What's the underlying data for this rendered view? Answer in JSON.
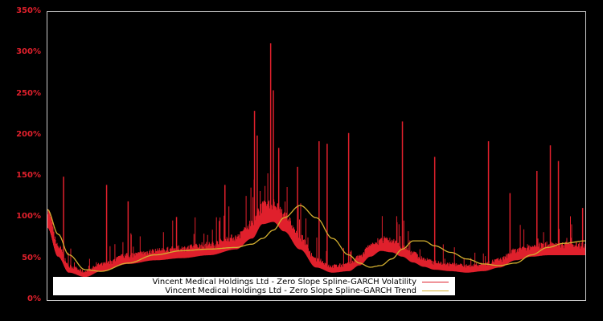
{
  "chart_data": {
    "type": "line",
    "title": "",
    "xlabel": "",
    "ylabel": "",
    "ylim": [
      0,
      350
    ],
    "y_ticks": [
      "0%",
      "50%",
      "100%",
      "150%",
      "200%",
      "250%",
      "300%",
      "350%"
    ],
    "x_ticks": [],
    "grid": false,
    "legend_position": "bottom-left inside",
    "background": "#000000",
    "axis_color": "#cccccc",
    "tick_label_color": "#e0202c",
    "x_normalized": [
      0,
      0.02,
      0.04,
      0.07,
      0.1,
      0.15,
      0.2,
      0.25,
      0.3,
      0.35,
      0.38,
      0.4,
      0.42,
      0.44,
      0.47,
      0.5,
      0.53,
      0.56,
      0.58,
      0.6,
      0.62,
      0.64,
      0.66,
      0.68,
      0.7,
      0.72,
      0.75,
      0.78,
      0.81,
      0.84,
      0.87,
      0.9,
      0.93,
      0.96,
      1.0
    ],
    "series": [
      {
        "name": "Vincent Medical Holdings Ltd - Zero Slope Spline-GARCH Volatility",
        "color": "#e0202c",
        "baseline_values": [
          100,
          60,
          38,
          32,
          40,
          50,
          55,
          58,
          62,
          70,
          85,
          105,
          108,
          95,
          70,
          45,
          38,
          40,
          48,
          60,
          68,
          66,
          60,
          52,
          46,
          42,
          40,
          38,
          40,
          45,
          55,
          60,
          62,
          62,
          62
        ],
        "spikes": [
          {
            "x": 0.03,
            "value": 150
          },
          {
            "x": 0.11,
            "value": 140
          },
          {
            "x": 0.15,
            "value": 120
          },
          {
            "x": 0.24,
            "value": 101
          },
          {
            "x": 0.33,
            "value": 140
          },
          {
            "x": 0.385,
            "value": 230
          },
          {
            "x": 0.39,
            "value": 200
          },
          {
            "x": 0.415,
            "value": 312
          },
          {
            "x": 0.42,
            "value": 255
          },
          {
            "x": 0.43,
            "value": 185
          },
          {
            "x": 0.465,
            "value": 162
          },
          {
            "x": 0.505,
            "value": 193
          },
          {
            "x": 0.52,
            "value": 190
          },
          {
            "x": 0.56,
            "value": 203
          },
          {
            "x": 0.66,
            "value": 217
          },
          {
            "x": 0.72,
            "value": 174
          },
          {
            "x": 0.82,
            "value": 193
          },
          {
            "x": 0.86,
            "value": 130
          },
          {
            "x": 0.91,
            "value": 157
          },
          {
            "x": 0.935,
            "value": 188
          },
          {
            "x": 0.95,
            "value": 169
          },
          {
            "x": 0.995,
            "value": 112
          }
        ]
      },
      {
        "name": "Vincent Medical Holdings Ltd - Zero Slope Spline-GARCH Trend",
        "color": "#d4b030",
        "values": [
          110,
          80,
          55,
          37,
          35,
          45,
          55,
          60,
          62,
          64,
          68,
          75,
          85,
          100,
          115,
          100,
          75,
          55,
          45,
          40,
          42,
          50,
          62,
          72,
          72,
          66,
          58,
          50,
          44,
          42,
          45,
          55,
          64,
          69,
          72
        ]
      }
    ]
  },
  "legend": {
    "items": [
      {
        "label": "Vincent Medical Holdings Ltd - Zero Slope Spline-GARCH Volatility",
        "color": "#e0202c"
      },
      {
        "label": "Vincent Medical Holdings Ltd - Zero Slope Spline-GARCH Trend",
        "color": "#d4b030"
      }
    ]
  }
}
